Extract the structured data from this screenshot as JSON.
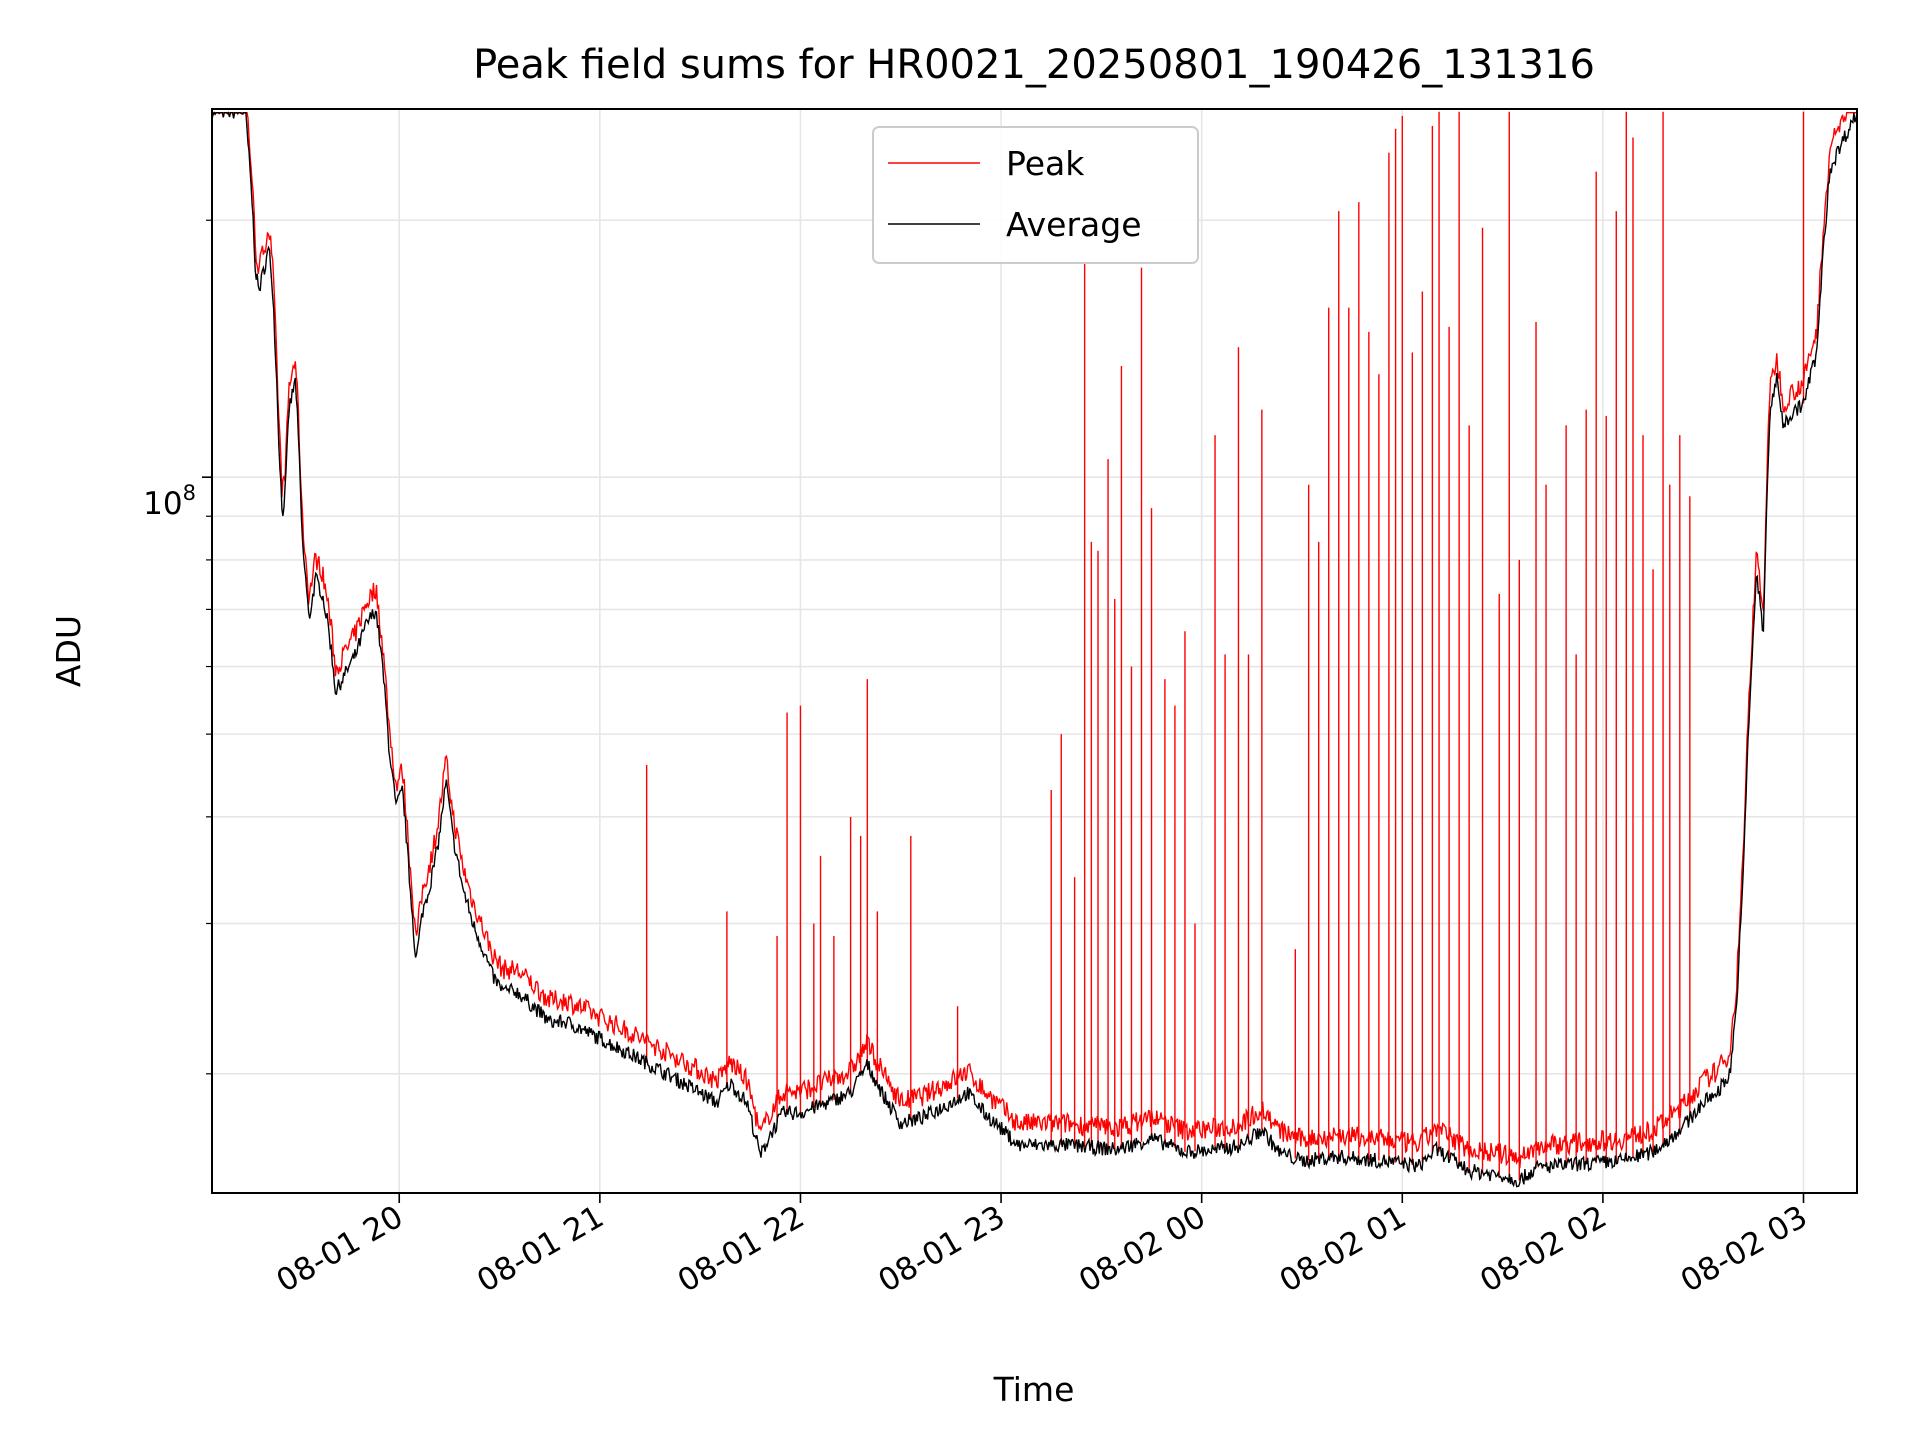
{
  "chart_data": {
    "type": "line",
    "title": "Peak field sums for HR0021_20250801_190426_131316",
    "xlabel": "Time",
    "ylabel": "ADU",
    "y_scale": "log",
    "y_tick_label": {
      "base": "10",
      "exponent": "8",
      "value": 100000000
    },
    "xlim": [
      "2025-08-01 19:04",
      "2025-08-02 03:16"
    ],
    "ylim": [
      14500000,
      270000000
    ],
    "x_tick_labels": [
      "08-01 20",
      "08-01 21",
      "08-01 22",
      "08-01 23",
      "08-02 00",
      "08-02 01",
      "08-02 02",
      "08-02 03"
    ],
    "x_tick_times": [
      "2025-08-01 20:00",
      "2025-08-01 21:00",
      "2025-08-01 22:00",
      "2025-08-01 23:00",
      "2025-08-02 00:00",
      "2025-08-02 01:00",
      "2025-08-02 02:00",
      "2025-08-02 03:00"
    ],
    "grid": true,
    "legend_position": "top-center",
    "series": [
      {
        "name": "Average",
        "color": "#000000",
        "x": [
          "2025-08-01 19:04",
          "2025-08-01 19:11",
          "2025-08-01 19:14",
          "2025-08-01 19:16",
          "2025-08-01 19:17",
          "2025-08-01 19:18",
          "2025-08-01 19:21",
          "2025-08-01 19:22",
          "2025-08-01 19:24",
          "2025-08-01 19:25",
          "2025-08-01 19:26",
          "2025-08-01 19:27",
          "2025-08-01 19:29",
          "2025-08-01 19:31",
          "2025-08-01 19:33",
          "2025-08-01 19:35",
          "2025-08-01 19:37",
          "2025-08-01 19:39",
          "2025-08-01 19:41",
          "2025-08-01 19:44",
          "2025-08-01 19:47",
          "2025-08-01 19:50",
          "2025-08-01 19:53",
          "2025-08-01 19:55",
          "2025-08-01 19:57",
          "2025-08-01 19:59",
          "2025-08-01 20:01",
          "2025-08-01 20:03",
          "2025-08-01 20:05",
          "2025-08-01 20:07",
          "2025-08-01 20:09",
          "2025-08-01 20:11",
          "2025-08-01 20:12",
          "2025-08-01 20:14",
          "2025-08-01 20:16",
          "2025-08-01 20:19",
          "2025-08-01 20:22",
          "2025-08-01 20:25",
          "2025-08-01 20:28",
          "2025-08-01 20:31",
          "2025-08-01 20:35",
          "2025-08-01 20:40",
          "2025-08-01 20:45",
          "2025-08-01 20:50",
          "2025-08-01 21:00",
          "2025-08-01 21:10",
          "2025-08-01 21:20",
          "2025-08-01 21:30",
          "2025-08-01 21:35",
          "2025-08-01 21:39",
          "2025-08-01 21:44",
          "2025-08-01 21:48",
          "2025-08-01 21:51",
          "2025-08-01 21:55",
          "2025-08-01 22:00",
          "2025-08-01 22:08",
          "2025-08-01 22:15",
          "2025-08-01 22:20",
          "2025-08-01 22:25",
          "2025-08-01 22:30",
          "2025-08-01 22:37",
          "2025-08-01 22:45",
          "2025-08-01 22:50",
          "2025-08-01 22:55",
          "2025-08-01 23:05",
          "2025-08-01 23:20",
          "2025-08-01 23:35",
          "2025-08-01 23:45",
          "2025-08-01 23:55",
          "2025-08-02 00:05",
          "2025-08-02 00:12",
          "2025-08-02 00:18",
          "2025-08-02 00:23",
          "2025-08-02 00:30",
          "2025-08-02 00:40",
          "2025-08-02 00:55",
          "2025-08-02 01:05",
          "2025-08-02 01:10",
          "2025-08-02 01:20",
          "2025-08-02 01:30",
          "2025-08-02 01:35",
          "2025-08-02 01:40",
          "2025-08-02 01:45",
          "2025-08-02 01:55",
          "2025-08-02 02:05",
          "2025-08-02 02:15",
          "2025-08-02 02:20",
          "2025-08-02 02:25",
          "2025-08-02 02:30",
          "2025-08-02 02:34",
          "2025-08-02 02:38",
          "2025-08-02 02:40",
          "2025-08-02 02:42",
          "2025-08-02 02:44",
          "2025-08-02 02:46",
          "2025-08-02 02:48",
          "2025-08-02 02:50",
          "2025-08-02 02:52",
          "2025-08-02 02:54",
          "2025-08-02 02:56",
          "2025-08-02 02:58",
          "2025-08-02 03:00",
          "2025-08-02 03:04",
          "2025-08-02 03:08",
          "2025-08-02 03:16"
        ],
        "y": [
          268000000,
          268000000,
          268000000,
          210000000,
          175000000,
          165000000,
          185000000,
          170000000,
          110000000,
          90000000,
          97000000,
          120000000,
          130000000,
          84000000,
          68000000,
          76000000,
          73000000,
          66000000,
          56000000,
          59000000,
          62000000,
          67000000,
          70000000,
          60000000,
          48000000,
          41000000,
          43000000,
          34000000,
          27000000,
          31000000,
          33000000,
          36000000,
          38000000,
          44000000,
          38000000,
          33000000,
          30000000,
          28000000,
          26000000,
          25000000,
          25000000,
          24000000,
          23000000,
          23000000,
          22000000,
          21000000,
          20000000,
          19000000,
          18500000,
          19500000,
          18500000,
          16000000,
          17000000,
          18000000,
          18000000,
          18500000,
          19000000,
          20500000,
          18800000,
          17500000,
          17800000,
          18500000,
          19000000,
          18000000,
          16500000,
          16500000,
          16300000,
          16800000,
          16200000,
          16300000,
          16500000,
          17200000,
          16200000,
          15800000,
          16000000,
          15800000,
          15600000,
          16300000,
          15400000,
          15200000,
          15000000,
          15500000,
          15600000,
          15700000,
          15800000,
          16200000,
          16800000,
          17500000,
          18500000,
          19000000,
          20000000,
          24000000,
          34000000,
          55000000,
          77000000,
          65000000,
          120000000,
          130000000,
          115000000,
          118000000,
          120000000,
          122000000,
          140000000,
          230000000,
          268000000
        ]
      },
      {
        "name": "Peak",
        "color": "#ff0000",
        "spikes": [
          [
            "2025-08-01 21:14",
            46000000
          ],
          [
            "2025-08-01 21:38",
            31000000
          ],
          [
            "2025-08-01 21:53",
            29000000
          ],
          [
            "2025-08-01 21:56",
            53000000
          ],
          [
            "2025-08-01 22:00",
            54000000
          ],
          [
            "2025-08-01 22:04",
            30000000
          ],
          [
            "2025-08-01 22:06",
            36000000
          ],
          [
            "2025-08-01 22:10",
            29000000
          ],
          [
            "2025-08-01 22:15",
            40000000
          ],
          [
            "2025-08-01 22:18",
            38000000
          ],
          [
            "2025-08-01 22:20",
            58000000
          ],
          [
            "2025-08-01 22:23",
            31000000
          ],
          [
            "2025-08-01 22:33",
            38000000
          ],
          [
            "2025-08-01 22:47",
            24000000
          ],
          [
            "2025-08-01 23:15",
            43000000
          ],
          [
            "2025-08-01 23:18",
            50000000
          ],
          [
            "2025-08-01 23:22",
            34000000
          ],
          [
            "2025-08-01 23:25",
            178000000
          ],
          [
            "2025-08-01 23:27",
            84000000
          ],
          [
            "2025-08-01 23:29",
            82000000
          ],
          [
            "2025-08-01 23:32",
            105000000
          ],
          [
            "2025-08-01 23:34",
            72000000
          ],
          [
            "2025-08-01 23:36",
            135000000
          ],
          [
            "2025-08-01 23:39",
            60000000
          ],
          [
            "2025-08-01 23:42",
            176000000
          ],
          [
            "2025-08-01 23:45",
            92000000
          ],
          [
            "2025-08-01 23:49",
            58000000
          ],
          [
            "2025-08-01 23:52",
            54000000
          ],
          [
            "2025-08-01 23:55",
            66000000
          ],
          [
            "2025-08-01 23:58",
            30000000
          ],
          [
            "2025-08-02 00:04",
            112000000
          ],
          [
            "2025-08-02 00:07",
            62000000
          ],
          [
            "2025-08-02 00:11",
            142000000
          ],
          [
            "2025-08-02 00:14",
            62000000
          ],
          [
            "2025-08-02 00:18",
            120000000
          ],
          [
            "2025-08-02 00:28",
            28000000
          ],
          [
            "2025-08-02 00:32",
            98000000
          ],
          [
            "2025-08-02 00:35",
            84000000
          ],
          [
            "2025-08-02 00:38",
            158000000
          ],
          [
            "2025-08-02 00:41",
            205000000
          ],
          [
            "2025-08-02 00:44",
            158000000
          ],
          [
            "2025-08-02 00:47",
            210000000
          ],
          [
            "2025-08-02 00:50",
            148000000
          ],
          [
            "2025-08-02 00:53",
            132000000
          ],
          [
            "2025-08-02 00:56",
            240000000
          ],
          [
            "2025-08-02 00:58",
            256000000
          ],
          [
            "2025-08-02 01:00",
            265000000
          ],
          [
            "2025-08-02 01:03",
            140000000
          ],
          [
            "2025-08-02 01:06",
            165000000
          ],
          [
            "2025-08-02 01:09",
            258000000
          ],
          [
            "2025-08-02 01:11",
            268000000
          ],
          [
            "2025-08-02 01:14",
            150000000
          ],
          [
            "2025-08-02 01:17",
            268000000
          ],
          [
            "2025-08-02 01:20",
            115000000
          ],
          [
            "2025-08-02 01:24",
            196000000
          ],
          [
            "2025-08-02 01:29",
            73000000
          ],
          [
            "2025-08-02 01:32",
            268000000
          ],
          [
            "2025-08-02 01:35",
            80000000
          ],
          [
            "2025-08-02 01:40",
            152000000
          ],
          [
            "2025-08-02 01:43",
            98000000
          ],
          [
            "2025-08-02 01:49",
            115000000
          ],
          [
            "2025-08-02 01:52",
            62000000
          ],
          [
            "2025-08-02 01:55",
            120000000
          ],
          [
            "2025-08-02 01:58",
            228000000
          ],
          [
            "2025-08-02 02:01",
            118000000
          ],
          [
            "2025-08-02 02:04",
            205000000
          ],
          [
            "2025-08-02 02:07",
            268000000
          ],
          [
            "2025-08-02 02:09",
            250000000
          ],
          [
            "2025-08-02 02:12",
            112000000
          ],
          [
            "2025-08-02 02:15",
            78000000
          ],
          [
            "2025-08-02 02:18",
            268000000
          ],
          [
            "2025-08-02 02:20",
            98000000
          ],
          [
            "2025-08-02 02:23",
            112000000
          ],
          [
            "2025-08-02 02:26",
            95000000
          ],
          [
            "2025-08-02 03:00",
            268000000
          ]
        ]
      }
    ]
  }
}
